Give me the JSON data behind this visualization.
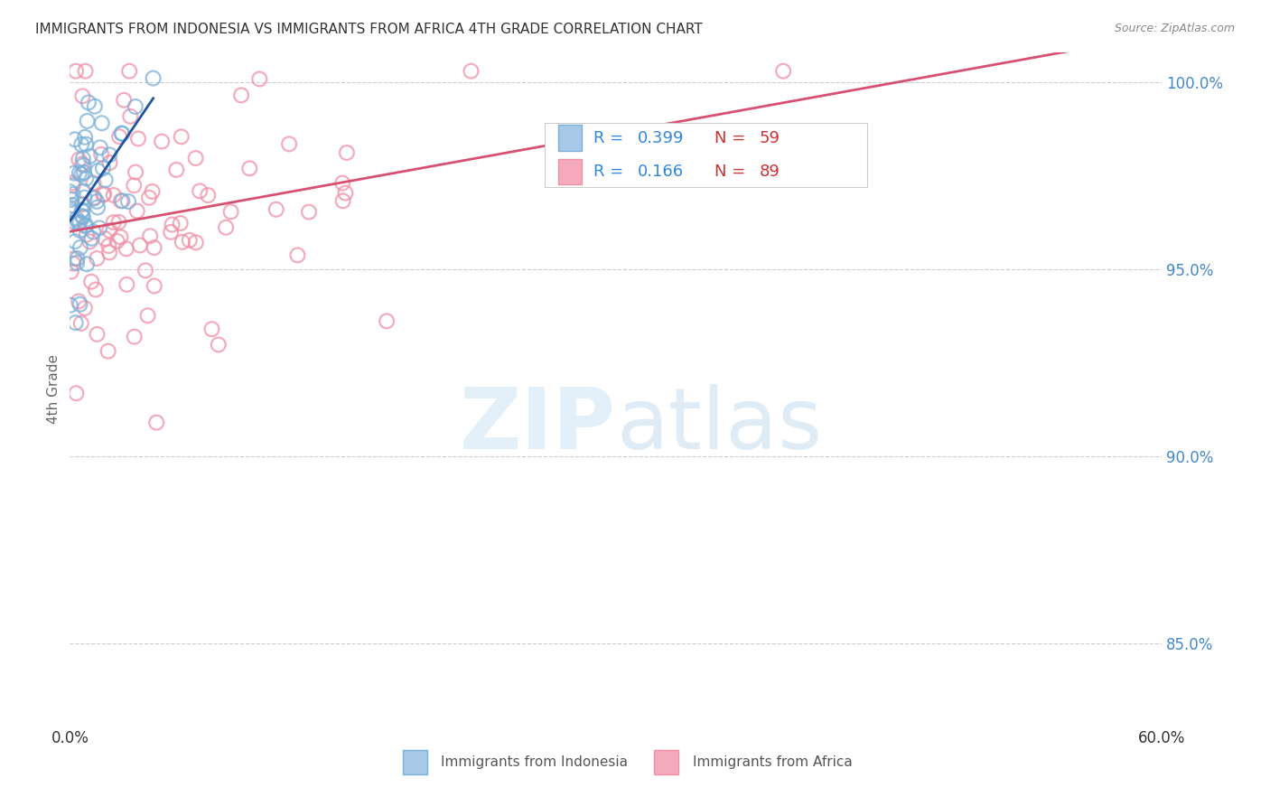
{
  "title": "IMMIGRANTS FROM INDONESIA VS IMMIGRANTS FROM AFRICA 4TH GRADE CORRELATION CHART",
  "source": "Source: ZipAtlas.com",
  "ylabel": "4th Grade",
  "xlim": [
    0.0,
    0.6
  ],
  "ylim": [
    0.828,
    1.008
  ],
  "yticks": [
    0.85,
    0.9,
    0.95,
    1.0
  ],
  "ytick_labels": [
    "85.0%",
    "90.0%",
    "95.0%",
    "100.0%"
  ],
  "xtick_positions": [
    0.0,
    0.1,
    0.2,
    0.3,
    0.4,
    0.5,
    0.6
  ],
  "xtick_labels": [
    "0.0%",
    "",
    "",
    "",
    "",
    "",
    "60.0%"
  ],
  "R_indonesia": 0.399,
  "N_indonesia": 59,
  "R_africa": 0.166,
  "N_africa": 89,
  "indonesia_color": "#7ab0d8",
  "africa_color": "#f090a8",
  "trendline_indonesia_color": "#2255a0",
  "trendline_africa_color": "#d85070",
  "background_color": "#ffffff",
  "grid_color": "#cccccc",
  "ytick_color": "#4488cc",
  "legend_indo_face": "#a8c8e8",
  "legend_africa_face": "#f4aabb",
  "legend_R_color": "#3388dd",
  "legend_N_color": "#cc3333"
}
